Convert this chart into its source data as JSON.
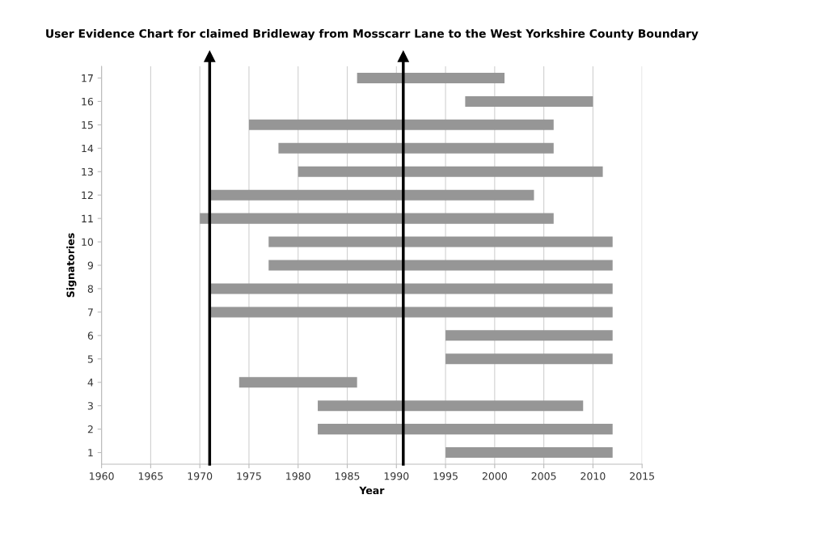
{
  "chart_data": {
    "type": "bar",
    "orientation": "horizontal",
    "title": "User Evidence Chart for claimed Bridleway from Mosscarr Lane to the West Yorkshire County Boundary",
    "xlabel": "Year",
    "ylabel": "Signatories",
    "categories": [
      "17",
      "16",
      "15",
      "14",
      "13",
      "12",
      "11",
      "10",
      "9",
      "8",
      "7",
      "6",
      "5",
      "4",
      "3",
      "2",
      "1"
    ],
    "base": [
      1986,
      1997,
      1975,
      1978,
      1980,
      1971,
      1970,
      1977,
      1977,
      1971,
      1971,
      1995,
      1995,
      1974,
      1982,
      1982,
      1995
    ],
    "values": [
      15,
      13,
      31,
      28,
      31,
      33,
      36,
      35,
      35,
      41,
      41,
      17,
      17,
      12,
      27,
      30,
      17
    ],
    "color": "#969696",
    "xlim": [
      1960,
      2015
    ],
    "xticks": [
      1960,
      1965,
      1970,
      1975,
      1980,
      1985,
      1990,
      1995,
      2000,
      2005,
      2010,
      2015
    ],
    "grid": "x",
    "ref_lines": [
      {
        "axis": "x",
        "value": 1971,
        "color": "#000000"
      },
      {
        "axis": "x",
        "value": 1990.7,
        "color": "#000000"
      }
    ]
  }
}
